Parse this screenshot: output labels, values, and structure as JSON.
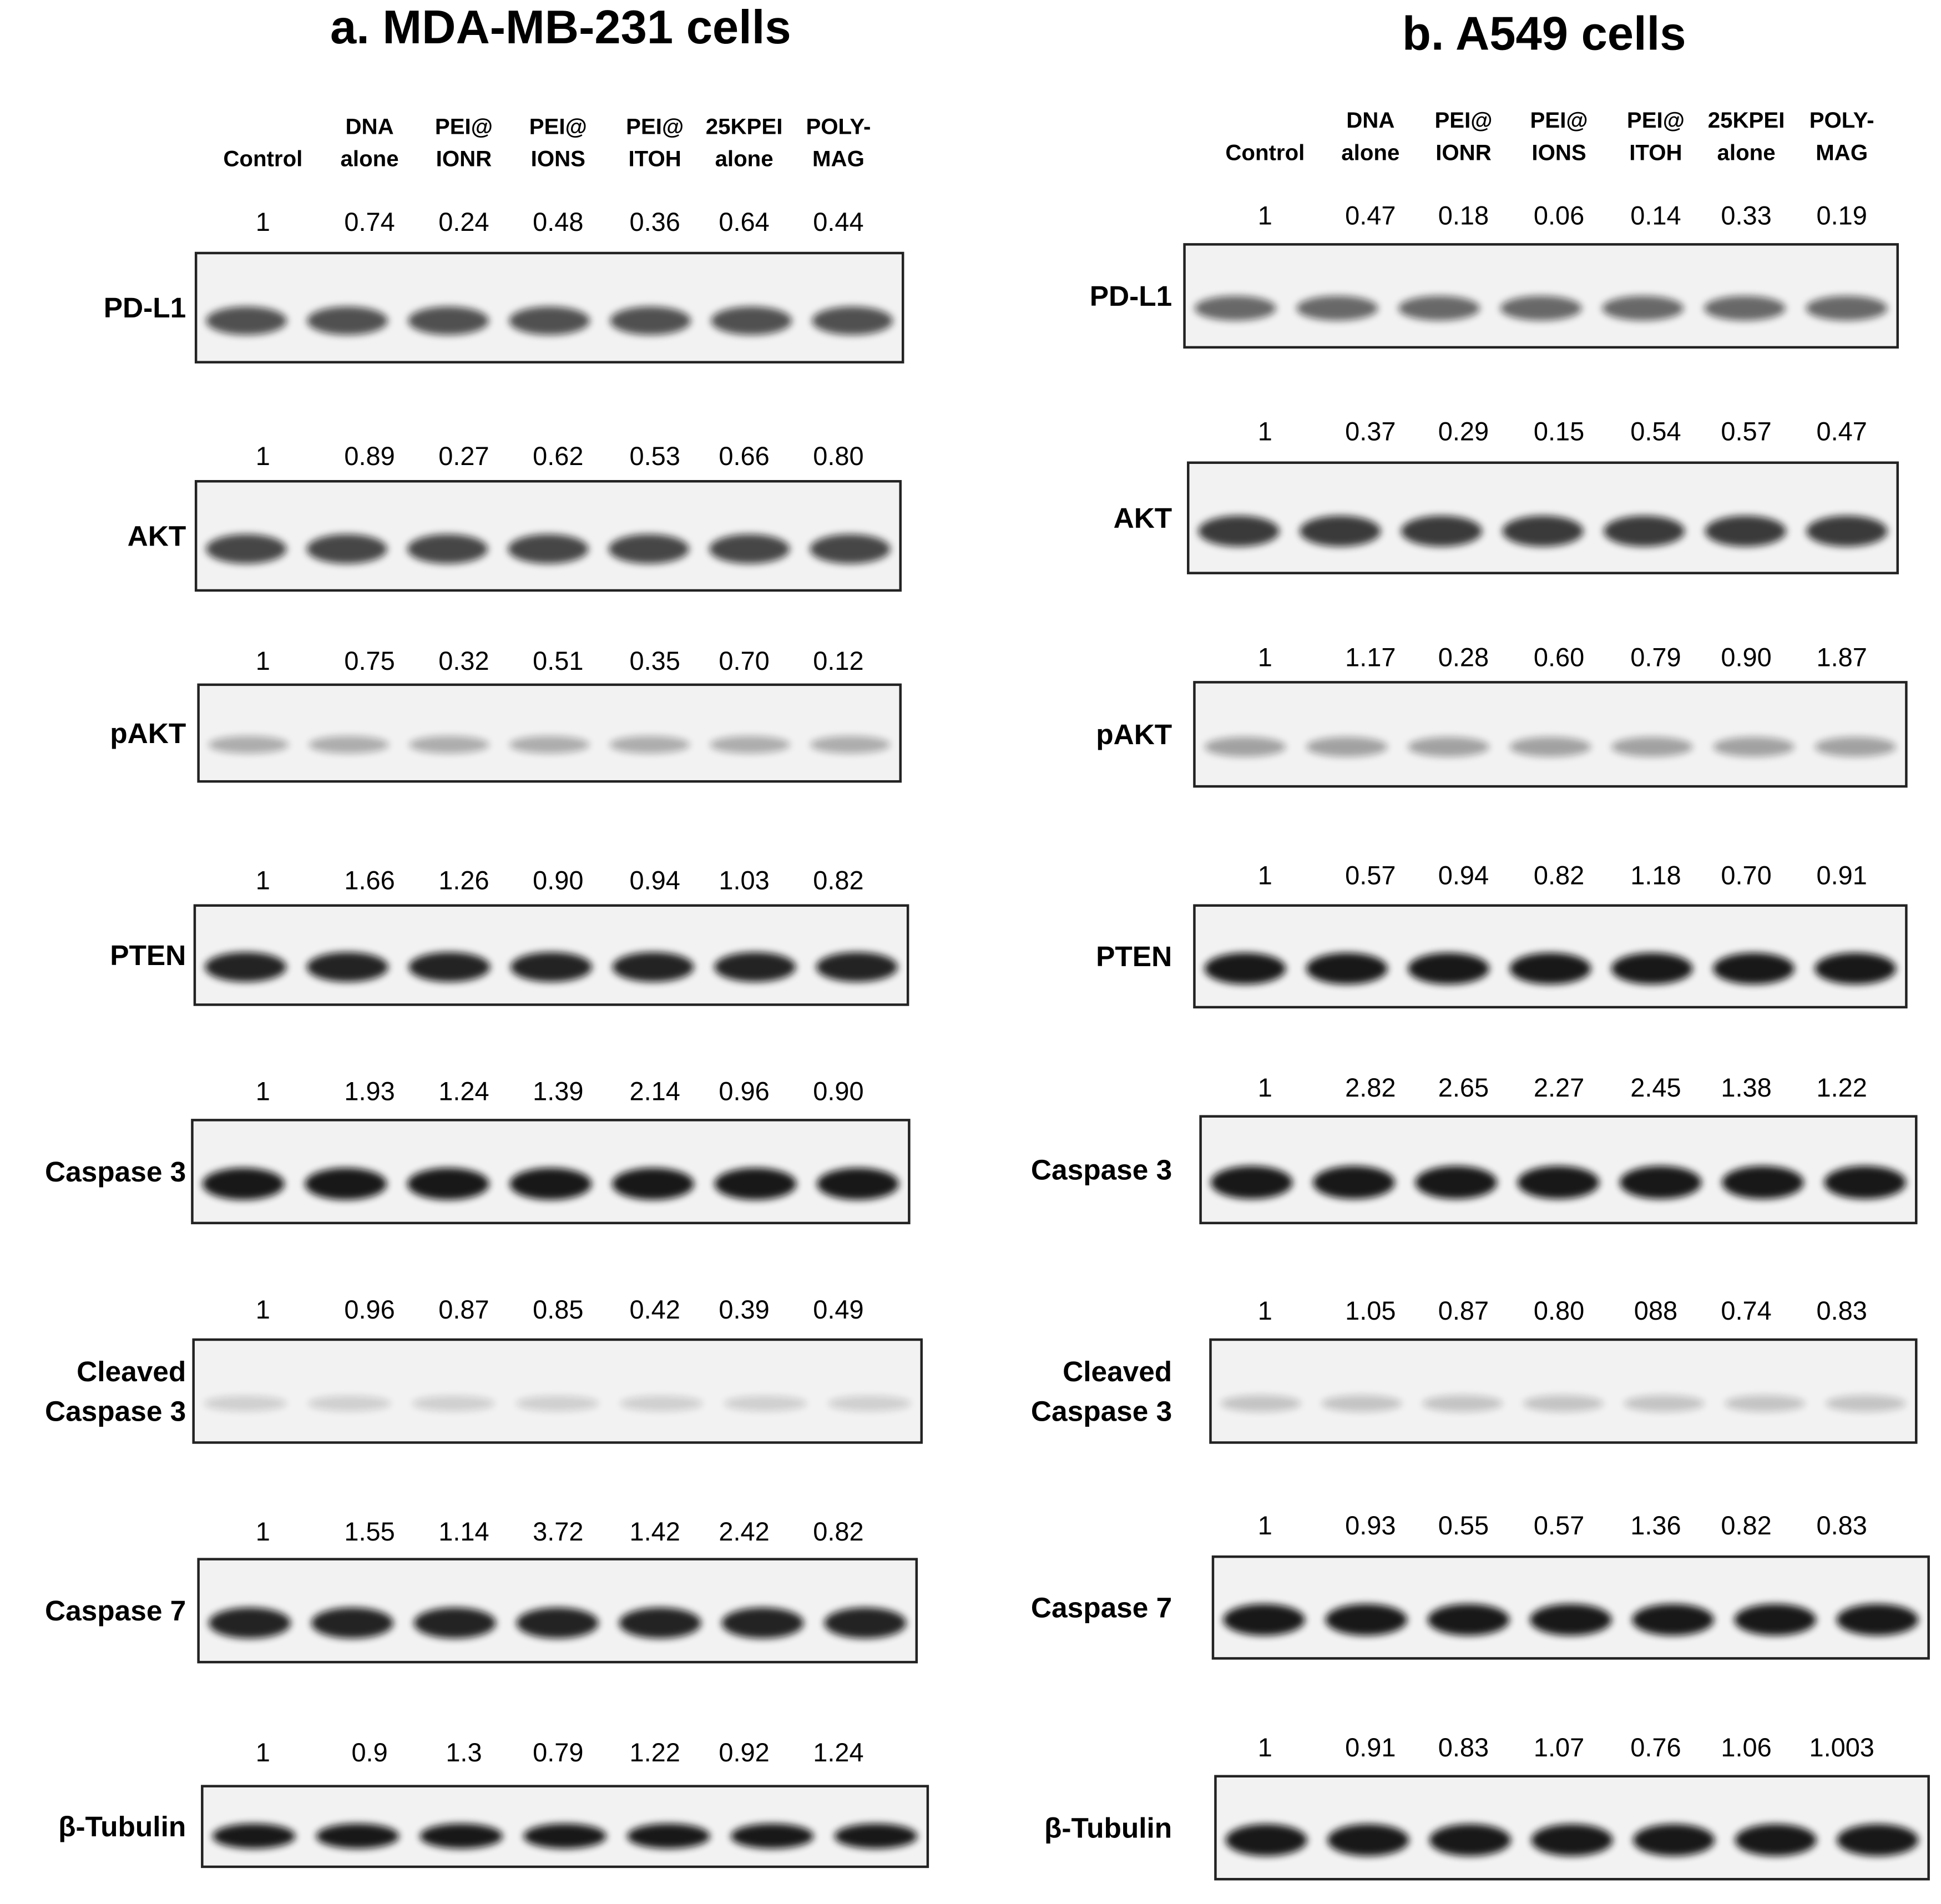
{
  "panels": [
    {
      "title": "a. MDA-MB-231 cells",
      "lanes": [
        [
          "Control"
        ],
        [
          "DNA",
          "alone"
        ],
        [
          "PEI@",
          "IONR"
        ],
        [
          "PEI@",
          "IONS"
        ],
        [
          "PEI@",
          "ITOH"
        ],
        [
          "25KPEI",
          "alone"
        ],
        [
          "POLY-",
          "MAG"
        ]
      ],
      "blots": [
        {
          "label": [
            "PD-L1"
          ],
          "values": [
            "1",
            "0.74",
            "0.24",
            "0.48",
            "0.36",
            "0.64",
            "0.44"
          ]
        },
        {
          "label": [
            "AKT"
          ],
          "values": [
            "1",
            "0.89",
            "0.27",
            "0.62",
            "0.53",
            "0.66",
            "0.80"
          ]
        },
        {
          "label": [
            "pAKT"
          ],
          "values": [
            "1",
            "0.75",
            "0.32",
            "0.51",
            "0.35",
            "0.70",
            "0.12"
          ]
        },
        {
          "label": [
            "PTEN"
          ],
          "values": [
            "1",
            "1.66",
            "1.26",
            "0.90",
            "0.94",
            "1.03",
            "0.82"
          ]
        },
        {
          "label": [
            "Caspase 3"
          ],
          "values": [
            "1",
            "1.93",
            "1.24",
            "1.39",
            "2.14",
            "0.96",
            "0.90"
          ]
        },
        {
          "label": [
            "Cleaved",
            "Caspase 3"
          ],
          "values": [
            "1",
            "0.96",
            "0.87",
            "0.85",
            "0.42",
            "0.39",
            "0.49"
          ]
        },
        {
          "label": [
            "Caspase 7"
          ],
          "values": [
            "1",
            "1.55",
            "1.14",
            "3.72",
            "1.42",
            "2.42",
            "0.82"
          ]
        },
        {
          "label": [
            "β-Tubulin"
          ],
          "values": [
            "1",
            "0.9",
            "1.3",
            "0.79",
            "1.22",
            "0.92",
            "1.24"
          ]
        }
      ]
    },
    {
      "title": "b. A549 cells",
      "lanes": [
        [
          "Control"
        ],
        [
          "DNA",
          "alone"
        ],
        [
          "PEI@",
          "IONR"
        ],
        [
          "PEI@",
          "IONS"
        ],
        [
          "PEI@",
          "ITOH"
        ],
        [
          "25KPEI",
          "alone"
        ],
        [
          "POLY-",
          "MAG"
        ]
      ],
      "blots": [
        {
          "label": [
            "PD-L1"
          ],
          "values": [
            "1",
            "0.47",
            "0.18",
            "0.06",
            "0.14",
            "0.33",
            "0.19"
          ]
        },
        {
          "label": [
            "AKT"
          ],
          "values": [
            "1",
            "0.37",
            "0.29",
            "0.15",
            "0.54",
            "0.57",
            "0.47"
          ]
        },
        {
          "label": [
            "pAKT"
          ],
          "values": [
            "1",
            "1.17",
            "0.28",
            "0.60",
            "0.79",
            "0.90",
            "1.87"
          ]
        },
        {
          "label": [
            "PTEN"
          ],
          "values": [
            "1",
            "0.57",
            "0.94",
            "0.82",
            "1.18",
            "0.70",
            "0.91"
          ]
        },
        {
          "label": [
            "Caspase 3"
          ],
          "values": [
            "1",
            "2.82",
            "2.65",
            "2.27",
            "2.45",
            "1.38",
            "1.22"
          ]
        },
        {
          "label": [
            "Cleaved",
            "Caspase 3"
          ],
          "values": [
            "1",
            "1.05",
            "0.87",
            "0.80",
            "088",
            "0.74",
            "0.83"
          ]
        },
        {
          "label": [
            "Caspase 7"
          ],
          "values": [
            "1",
            "0.93",
            "0.55",
            "0.57",
            "1.36",
            "0.82",
            "0.83"
          ]
        },
        {
          "label": [
            "β-Tubulin"
          ],
          "values": [
            "1",
            "0.91",
            "0.83",
            "1.07",
            "0.76",
            "1.06",
            "1.003"
          ]
        }
      ]
    }
  ]
}
